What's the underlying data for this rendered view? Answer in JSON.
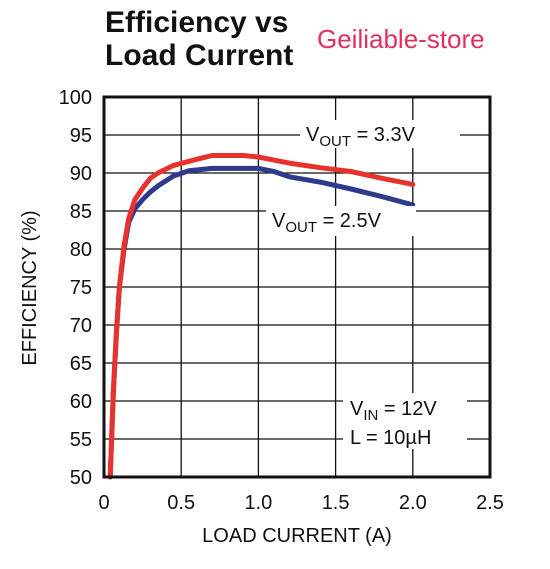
{
  "chart_data": {
    "type": "line",
    "title": "Efficiency vs\nLoad Current",
    "xlabel": "LOAD CURRENT (A)",
    "ylabel": "EFFICIENCY (%)",
    "xlim": [
      0,
      2.5
    ],
    "ylim": [
      50,
      100
    ],
    "xticks": [
      "0",
      "0.5",
      "1.0",
      "1.5",
      "2.0",
      "2.5"
    ],
    "yticks": [
      "100",
      "95",
      "90",
      "85",
      "80",
      "75",
      "70",
      "65",
      "60",
      "55",
      "50"
    ],
    "grid": true,
    "series": [
      {
        "name": "VOUT = 3.3V",
        "color": "#e8322e",
        "x": [
          0.04,
          0.06,
          0.08,
          0.1,
          0.13,
          0.16,
          0.2,
          0.25,
          0.3,
          0.35,
          0.45,
          0.6,
          0.7,
          0.8,
          0.9,
          1.0,
          1.1,
          1.2,
          1.4,
          1.6,
          1.8,
          2.0
        ],
        "y": [
          50,
          61,
          69,
          75,
          80.5,
          84,
          86.5,
          88,
          89.3,
          90,
          91,
          91.8,
          92.3,
          92.3,
          92.3,
          92.1,
          91.7,
          91.3,
          90.7,
          90.2,
          89.3,
          88.5
        ]
      },
      {
        "name": "VOUT = 2.5V",
        "color": "#2e3a8c",
        "x": [
          0.04,
          0.06,
          0.08,
          0.1,
          0.13,
          0.16,
          0.2,
          0.25,
          0.3,
          0.35,
          0.45,
          0.55,
          0.7,
          0.8,
          0.9,
          1.0,
          1.1,
          1.2,
          1.4,
          1.6,
          1.8,
          2.0
        ],
        "y": [
          50,
          61,
          69,
          75,
          80,
          83.5,
          85.3,
          86.5,
          87.5,
          88.3,
          89.6,
          90.3,
          90.6,
          90.6,
          90.6,
          90.6,
          90.2,
          89.5,
          88.8,
          87.9,
          86.9,
          85.8
        ]
      }
    ],
    "annotations": {
      "vout33": {
        "base": "V",
        "sub": "OUT",
        "rest": " = 3.3V"
      },
      "vout25": {
        "base": "V",
        "sub": "OUT",
        "rest": " = 2.5V"
      },
      "vin": {
        "base": "V",
        "sub": "IN",
        "rest": " = 12V"
      },
      "inductor": "L = 10µH"
    }
  },
  "watermark": "Geiliable-store"
}
